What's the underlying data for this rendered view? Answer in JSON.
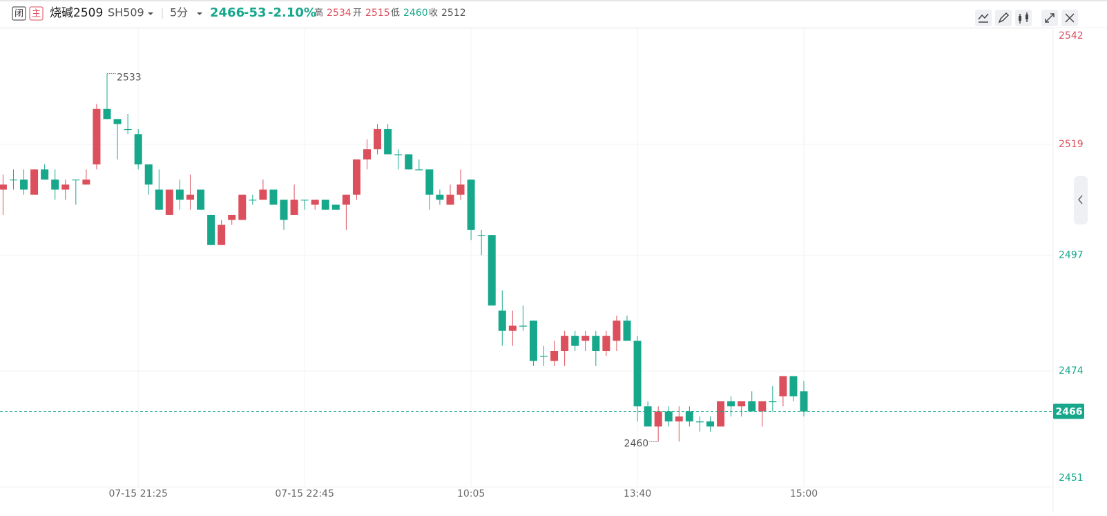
{
  "header": {
    "close_tag": "闭",
    "main_tag": "主",
    "name": "烧碱2509",
    "code": "SH509",
    "period": "5分",
    "price": "2466",
    "change": "-53",
    "change_pct": "-2.10%",
    "high_label": "高",
    "high": "2534",
    "open_label": "开",
    "open": "2515",
    "low_label": "低",
    "low": "2460",
    "prev_close_label": "收",
    "prev_close": "2512"
  },
  "chart_data": {
    "type": "candlestick",
    "categories": [
      null,
      null,
      null,
      null,
      null,
      null,
      null,
      null,
      null,
      null,
      null,
      null,
      null,
      "07-15 21:25",
      null,
      null,
      null,
      null,
      null,
      null,
      null,
      null,
      null,
      null,
      null,
      null,
      null,
      null,
      null,
      "07-15 22:45",
      null,
      null,
      null,
      null,
      null,
      null,
      null,
      null,
      null,
      null,
      null,
      null,
      null,
      null,
      null,
      "10:05",
      null,
      null,
      null,
      null,
      null,
      null,
      null,
      null,
      null,
      null,
      null,
      null,
      null,
      null,
      null,
      "13:40",
      null,
      null,
      null,
      null,
      null,
      null,
      null,
      null,
      null,
      null,
      null,
      null,
      null,
      null,
      null,
      "15:00"
    ],
    "open": [
      2510,
      2512,
      2512,
      2509,
      2514,
      2512,
      2510,
      2512,
      2511,
      2515,
      2526,
      2524,
      2522,
      2521,
      2515,
      2510,
      2505,
      2510,
      2508,
      2510,
      2505,
      2499,
      2504,
      2504,
      2508,
      2508,
      2510,
      2508,
      2505,
      2508,
      2507,
      2508,
      2507,
      2507,
      2509,
      2516,
      2518,
      2522,
      2517,
      2517,
      2514,
      2514,
      2509,
      2507,
      2509,
      2512,
      2501,
      2501,
      2486,
      2482,
      2483,
      2484,
      2477,
      2476,
      2478,
      2481,
      2480,
      2481,
      2478,
      2480,
      2484,
      2480,
      2467,
      2463,
      2466,
      2464,
      2466,
      2464,
      2464,
      2463,
      2468,
      2467,
      2468,
      2466,
      2468,
      2469,
      2473,
      2470
    ],
    "high": [
      2513,
      2514,
      2514,
      2514,
      2515,
      2514,
      2512,
      2512,
      2514,
      2527,
      2533,
      2524,
      2525,
      2522,
      2515,
      2514,
      2510,
      2512,
      2513,
      2510,
      2505,
      2504,
      2505,
      2509,
      2509,
      2512,
      2510,
      2508,
      2511,
      2508,
      2508,
      2508,
      2507,
      2509,
      2516,
      2520,
      2523,
      2523,
      2518,
      2517,
      2516,
      2514,
      2510,
      2511,
      2514,
      2512,
      2502,
      2501,
      2490,
      2486,
      2487,
      2484,
      2479,
      2480,
      2482,
      2482,
      2482,
      2482,
      2482,
      2485,
      2485,
      2481,
      2468,
      2467,
      2467,
      2467,
      2467,
      2465,
      2465,
      2468,
      2469,
      2468,
      2470,
      2468,
      2471,
      2473,
      2473,
      2472
    ],
    "low": [
      2505,
      2510,
      2509,
      2509,
      2512,
      2508,
      2508,
      2507,
      2511,
      2514,
      2524,
      2516,
      2521,
      2514,
      2509,
      2506,
      2505,
      2506,
      2506,
      2506,
      2499,
      2499,
      2503,
      2504,
      2507,
      2508,
      2507,
      2502,
      2505,
      2506,
      2506,
      2506,
      2506,
      2502,
      2508,
      2514,
      2517,
      2517,
      2514,
      2514,
      2514,
      2506,
      2507,
      2507,
      2508,
      2500,
      2497,
      2487,
      2479,
      2479,
      2482,
      2475,
      2475,
      2475,
      2475,
      2478,
      2478,
      2475,
      2477,
      2478,
      2480,
      2464,
      2463,
      2460,
      2463,
      2460,
      2463,
      2462,
      2462,
      2463,
      2465,
      2465,
      2466,
      2463,
      2466,
      2467,
      2468,
      2465
    ],
    "close": [
      2511,
      2512,
      2510,
      2514,
      2512,
      2510,
      2511,
      2512,
      2512,
      2526,
      2524,
      2523,
      2522,
      2515,
      2511,
      2506,
      2510,
      2508,
      2509,
      2506,
      2499,
      2503,
      2505,
      2509,
      2508,
      2510,
      2507,
      2504,
      2508,
      2508,
      2508,
      2506,
      2506,
      2509,
      2516,
      2518,
      2522,
      2517,
      2517,
      2514,
      2514,
      2509,
      2508,
      2509,
      2511,
      2502,
      2501,
      2487,
      2482,
      2483,
      2483,
      2476,
      2477,
      2478,
      2481,
      2479,
      2481,
      2478,
      2481,
      2484,
      2480,
      2467,
      2463,
      2466,
      2464,
      2465,
      2464,
      2464,
      2463,
      2468,
      2467,
      2468,
      2466,
      2468,
      2468,
      2473,
      2469,
      2466
    ],
    "up_color": "#dc4f5c",
    "down_color": "#17a88c",
    "ylim": [
      2451,
      2542
    ],
    "yticks": [
      2451,
      2474,
      2497,
      2519,
      2542
    ],
    "grid": true,
    "last_price": 2466,
    "max_mark": 2533,
    "min_mark": 2460
  }
}
